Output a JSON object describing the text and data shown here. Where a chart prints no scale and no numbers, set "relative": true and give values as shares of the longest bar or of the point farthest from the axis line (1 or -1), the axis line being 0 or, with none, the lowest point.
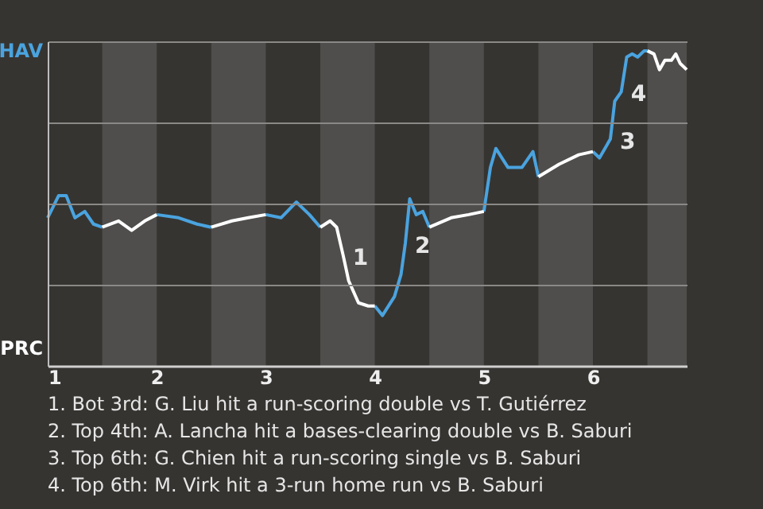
{
  "chart_data": {
    "type": "line",
    "relative": true,
    "x": [
      1,
      1.1,
      1.17,
      1.25,
      1.34,
      1.42,
      1.5,
      1.65,
      1.77,
      1.89,
      2,
      2.2,
      2.37,
      2.5,
      2.69,
      2.84,
      3,
      3.14,
      3.28,
      3.4,
      3.5,
      3.59,
      3.65,
      3.71,
      3.76,
      3.85,
      3.94,
      4,
      4.07,
      4.18,
      4.24,
      4.28,
      4.32,
      4.38,
      4.44,
      4.5,
      4.7,
      4.86,
      5,
      5.06,
      5.11,
      5.22,
      5.35,
      5.45,
      5.5,
      5.69,
      5.87,
      6,
      6.06,
      6.11,
      6.16,
      6.2,
      6.26,
      6.31,
      6.36,
      6.41,
      6.47,
      6.5,
      6.56,
      6.61,
      6.66,
      6.72,
      6.76,
      6.8,
      6.86
    ],
    "series": [
      {
        "name": "HAV",
        "color": "#4aa3df",
        "values": [
          0.47,
          0.54,
          0.54,
          0.47,
          0.49,
          0.45,
          0.44,
          null,
          null,
          null,
          0.48,
          0.47,
          0.45,
          0.44,
          null,
          null,
          0.48,
          0.47,
          0.52,
          0.48,
          0.44,
          null,
          null,
          null,
          null,
          null,
          null,
          0.19,
          0.16,
          0.22,
          0.29,
          0.39,
          0.53,
          0.48,
          0.49,
          0.44,
          null,
          null,
          0.49,
          0.63,
          0.69,
          0.63,
          0.63,
          0.68,
          0.6,
          null,
          null,
          0.68,
          0.66,
          0.69,
          0.72,
          0.84,
          0.87,
          0.98,
          0.99,
          0.98,
          1,
          1,
          null,
          null,
          null,
          null,
          null,
          null,
          null
        ]
      },
      {
        "name": "PRC",
        "color": "#ffffff",
        "values": [
          null,
          null,
          null,
          null,
          null,
          null,
          0.44,
          0.46,
          0.43,
          0.46,
          0.48,
          null,
          null,
          0.44,
          0.46,
          0.47,
          0.48,
          null,
          null,
          null,
          0.44,
          0.46,
          0.44,
          0.35,
          0.27,
          0.2,
          0.19,
          0.19,
          null,
          null,
          null,
          null,
          null,
          null,
          null,
          0.44,
          0.47,
          0.48,
          0.49,
          null,
          null,
          null,
          null,
          null,
          0.6,
          0.64,
          0.67,
          0.68,
          null,
          null,
          null,
          null,
          null,
          null,
          null,
          null,
          null,
          1,
          0.99,
          0.94,
          0.97,
          0.97,
          0.99,
          0.96,
          0.94
        ]
      }
    ],
    "xlim": [
      1,
      6.86
    ],
    "xticks": [
      1,
      2,
      3,
      4,
      5,
      6
    ],
    "grid": "y",
    "bands": [
      {
        "axis": "x",
        "from": 1.5,
        "to": 2,
        "color": "#4f4e4c"
      },
      {
        "axis": "x",
        "from": 2.5,
        "to": 3,
        "color": "#4f4e4c"
      },
      {
        "axis": "x",
        "from": 3.5,
        "to": 4,
        "color": "#4f4e4c"
      },
      {
        "axis": "x",
        "from": 4.5,
        "to": 5,
        "color": "#4f4e4c"
      },
      {
        "axis": "x",
        "from": 5.5,
        "to": 6,
        "color": "#4f4e4c"
      },
      {
        "axis": "x",
        "from": 6.5,
        "to": 6.86,
        "color": "#4f4e4c"
      }
    ],
    "annotations": [
      {
        "text": "1",
        "x": 3.71,
        "y": 0.35
      },
      {
        "text": "2",
        "x": 4.28,
        "y": 0.39
      },
      {
        "text": "3",
        "x": 6.16,
        "y": 0.72
      },
      {
        "text": "4",
        "x": 6.26,
        "y": 0.87
      },
      "1. Bot 3rd: G. Liu hit a run-scoring double vs T. Gutiérrez",
      "2. Top 4th: A. Lancha hit a bases-clearing double vs B. Saburi",
      "3. Top 6th: G. Chien hit a run-scoring single vs B. Saburi",
      "4. Top 6th: M. Virk hit a 3-run home run vs B. Saburi"
    ]
  }
}
